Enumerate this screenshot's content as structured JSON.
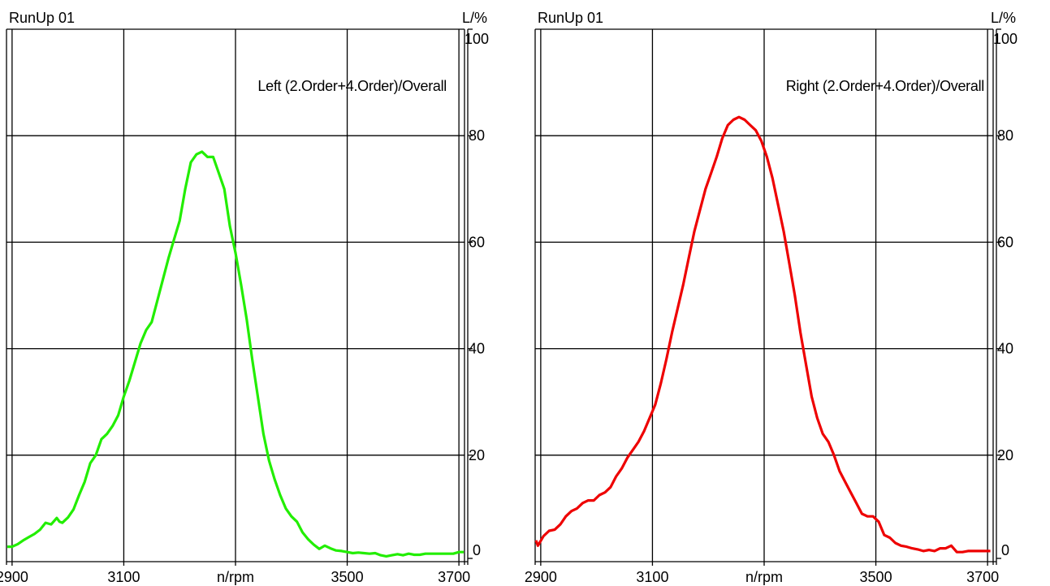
{
  "chart_data": [
    {
      "type": "line",
      "title": "RunUp  01",
      "annotation": "Left (2.Order+4.Order)/Overall",
      "xlabel": "n/rpm",
      "ylabel": "L/%",
      "xlim": [
        2890,
        3710
      ],
      "ylim": [
        0,
        100
      ],
      "xticks": [
        2900,
        3100,
        3500,
        3700
      ],
      "yticks": [
        0,
        20,
        40,
        60,
        80,
        100
      ],
      "grid": true,
      "series": [
        {
          "color": "#22ee00",
          "x": [
            2890,
            2900,
            2910,
            2920,
            2930,
            2940,
            2950,
            2960,
            2970,
            2980,
            2985,
            2990,
            3000,
            3010,
            3020,
            3030,
            3040,
            3050,
            3060,
            3070,
            3080,
            3090,
            3100,
            3110,
            3120,
            3130,
            3140,
            3150,
            3160,
            3170,
            3180,
            3190,
            3200,
            3210,
            3220,
            3230,
            3240,
            3250,
            3260,
            3270,
            3280,
            3290,
            3300,
            3310,
            3320,
            3330,
            3340,
            3350,
            3360,
            3370,
            3380,
            3390,
            3400,
            3410,
            3420,
            3430,
            3440,
            3450,
            3460,
            3470,
            3480,
            3490,
            3500,
            3510,
            3520,
            3530,
            3540,
            3550,
            3560,
            3570,
            3580,
            3590,
            3600,
            3610,
            3620,
            3630,
            3640,
            3650,
            3660,
            3670,
            3680,
            3690,
            3700,
            3710
          ],
          "values": [
            2.8,
            2.8,
            3.3,
            4,
            4.6,
            5.2,
            6,
            7.3,
            7,
            8.2,
            7.5,
            7.3,
            8.3,
            9.8,
            12.5,
            15,
            18.5,
            20,
            23,
            24,
            25.5,
            27.5,
            31,
            34,
            37.5,
            41,
            43.5,
            45,
            49,
            53,
            57,
            60.5,
            64,
            70,
            75,
            76.5,
            77,
            76,
            76,
            73,
            70,
            63,
            58,
            52,
            45.5,
            38,
            31,
            24,
            19,
            15.5,
            12.5,
            10,
            8.5,
            7.5,
            5.5,
            4.2,
            3.2,
            2.4,
            3,
            2.5,
            2.1,
            2,
            1.8,
            1.6,
            1.7,
            1.6,
            1.5,
            1.6,
            1.2,
            1,
            1.2,
            1.4,
            1.2,
            1.5,
            1.3,
            1.3,
            1.5,
            1.5,
            1.5,
            1.5,
            1.5,
            1.5,
            1.8,
            1.8
          ]
        }
      ]
    },
    {
      "type": "line",
      "title": "RunUp  01",
      "annotation": "Right (2.Order+4.Order)/Overall",
      "xlabel": "n/rpm",
      "ylabel": "L/%",
      "xlim": [
        2890,
        3710
      ],
      "ylim": [
        0,
        100
      ],
      "xticks": [
        2900,
        3100,
        3500,
        3700
      ],
      "yticks": [
        0,
        20,
        40,
        60,
        80,
        100
      ],
      "grid": true,
      "series": [
        {
          "color": "#ee0000",
          "x": [
            2885,
            2895,
            2905,
            2915,
            2925,
            2935,
            2945,
            2955,
            2965,
            2975,
            2985,
            2995,
            3005,
            3015,
            3025,
            3035,
            3045,
            3055,
            3065,
            3075,
            3085,
            3095,
            3105,
            3115,
            3125,
            3135,
            3145,
            3155,
            3165,
            3175,
            3185,
            3195,
            3205,
            3215,
            3225,
            3235,
            3245,
            3255,
            3265,
            3275,
            3285,
            3295,
            3305,
            3315,
            3325,
            3335,
            3345,
            3355,
            3365,
            3375,
            3385,
            3395,
            3405,
            3415,
            3425,
            3435,
            3445,
            3455,
            3465,
            3475,
            3485,
            3495,
            3505,
            3515,
            3525,
            3535,
            3545,
            3555,
            3565,
            3575,
            3585,
            3595,
            3605,
            3615,
            3625,
            3635,
            3645,
            3655,
            3665,
            3675,
            3685,
            3695,
            3705
          ],
          "values": [
            4,
            3,
            4.8,
            5.8,
            6,
            7,
            8.5,
            9.5,
            10,
            11,
            11.5,
            11.5,
            12.5,
            13,
            14,
            16,
            17.5,
            19.5,
            21,
            22.5,
            24.5,
            27,
            29.5,
            33.5,
            38,
            43,
            47.5,
            52,
            57,
            62,
            66,
            70,
            73,
            76,
            79.5,
            82,
            83,
            83.5,
            83,
            82,
            81,
            79,
            76,
            72,
            67,
            62,
            56,
            50,
            43,
            37,
            31,
            27,
            24,
            22.5,
            20,
            17,
            15,
            13,
            11,
            9,
            8.5,
            8.5,
            7.5,
            5,
            4.5,
            3.5,
            3,
            2.8,
            2.5,
            2.3,
            2,
            2.2,
            2,
            2.5,
            2.5,
            3,
            1.8,
            1.8,
            2,
            2,
            2,
            2,
            2
          ]
        }
      ]
    }
  ]
}
